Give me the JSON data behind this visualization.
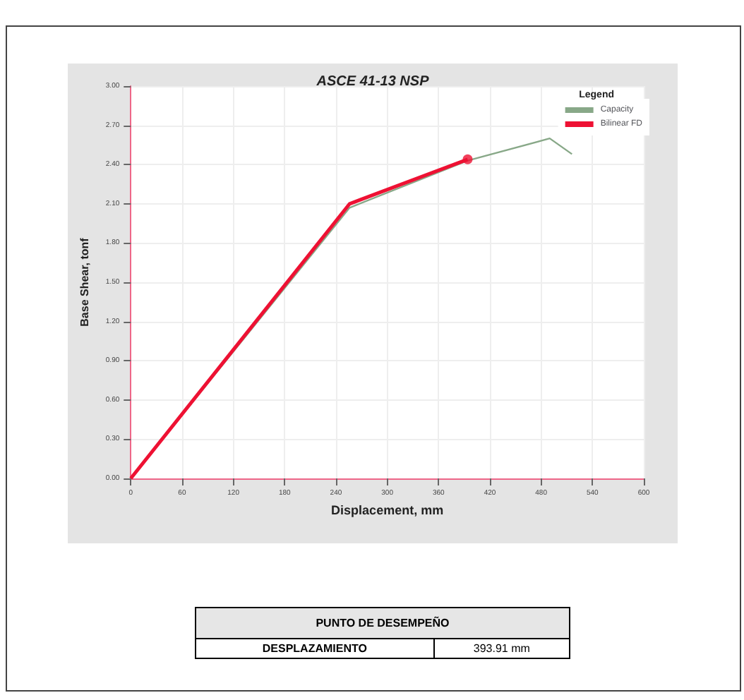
{
  "chart_data": {
    "type": "line",
    "title": "ASCE 41-13 NSP",
    "xlabel": "Displacement, mm",
    "ylabel": "Base Shear, tonf",
    "legend_title": "Legend",
    "xlim": [
      0,
      600
    ],
    "xticks": [
      0,
      60,
      120,
      180,
      240,
      300,
      360,
      420,
      480,
      540,
      600
    ],
    "ylim": [
      0,
      3
    ],
    "yticks": [
      {
        "value": 0,
        "label": "0.00"
      },
      {
        "value": 0.3,
        "label": "0.30"
      },
      {
        "value": 0.6,
        "label": "0.60"
      },
      {
        "value": 0.9,
        "label": "0.90"
      },
      {
        "value": 1.2,
        "label": "1.20"
      },
      {
        "value": 1.5,
        "label": "1.50"
      },
      {
        "value": 1.8,
        "label": "1.80"
      },
      {
        "value": 2.1,
        "label": "2.10"
      },
      {
        "value": 2.4,
        "label": "2.40"
      },
      {
        "value": 2.7,
        "label": "2.70"
      },
      {
        "value": 3,
        "label": "3.00"
      }
    ],
    "grid": true,
    "legend": "top right",
    "marker": "none",
    "line_style": "solid",
    "series": [
      {
        "name": "Capacity",
        "color": "#88a888",
        "x": [
          0,
          256,
          394,
          490,
          516
        ],
        "values": [
          0,
          2.07,
          2.43,
          2.6,
          2.48
        ]
      },
      {
        "name": "Bilinear FD",
        "color": "#ee1133",
        "x": [
          0,
          256,
          394
        ],
        "values": [
          0,
          2.1,
          2.44
        ]
      },
      {
        "type": "scatter",
        "marker": "circle",
        "color": "#ee1133",
        "x": [
          394
        ],
        "values": [
          2.44
        ]
      }
    ],
    "annotations": [
      "PUNTO DE DESEMPEÑO",
      "DESPLAZAMIENTO",
      "393.91  mm"
    ]
  }
}
